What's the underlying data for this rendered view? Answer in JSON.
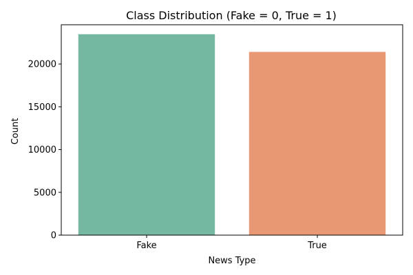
{
  "chart_data": {
    "type": "bar",
    "title": "Class Distribution (Fake = 0, True = 1)",
    "xlabel": "News Type",
    "ylabel": "Count",
    "categories": [
      "Fake",
      "True"
    ],
    "values": [
      23481,
      21417
    ],
    "ylim": [
      0,
      24589
    ],
    "yticks": [
      0,
      5000,
      10000,
      15000,
      20000
    ],
    "colors": [
      "#76b7a2",
      "#e99875"
    ],
    "grid": false,
    "legend": "none"
  }
}
